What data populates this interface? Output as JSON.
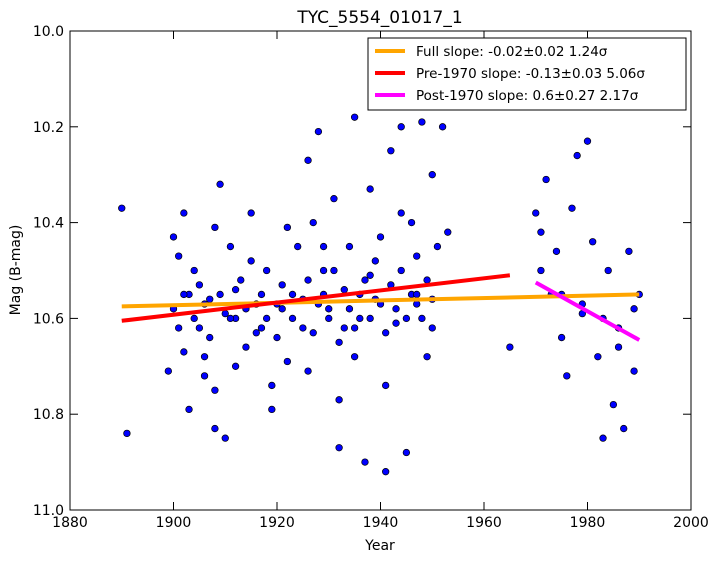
{
  "chart_data": {
    "type": "scatter",
    "title": "TYC_5554_01017_1",
    "x_label": "Year",
    "y_label": "Mag (B-mag)",
    "xlim": [
      1880,
      2000
    ],
    "ylim": [
      10.0,
      11.0
    ],
    "invert_y": true,
    "xticks": [
      1880,
      1900,
      1920,
      1940,
      1960,
      1980,
      2000
    ],
    "yticks": [
      {
        "value": 10.0,
        "label": "10.0"
      },
      10.2,
      10.4,
      10.6,
      10.8,
      {
        "value": 11.0,
        "label": "11.0"
      }
    ],
    "legend": "upper right",
    "points": {
      "color": "#0000ff",
      "x": [
        1890,
        1891,
        1899,
        1900,
        1901,
        1902,
        1903,
        1903,
        1905,
        1906,
        1907,
        1908,
        1908,
        1909,
        1910,
        1911,
        1912,
        1913,
        1914,
        1915,
        1916,
        1917,
        1918,
        1919,
        1920,
        1921,
        1922,
        1923,
        1924,
        1925,
        1926,
        1927,
        1928,
        1929,
        1930,
        1931,
        1932,
        1933,
        1934,
        1935,
        1936,
        1937,
        1938,
        1939,
        1940,
        1941,
        1942,
        1943,
        1944,
        1945,
        1946,
        1947,
        1948,
        1949,
        1950,
        1951,
        1952,
        1953,
        1965,
        1970,
        1971,
        1972,
        1973,
        1974,
        1975,
        1976,
        1977,
        1978,
        1979,
        1980,
        1981,
        1982,
        1983,
        1984,
        1985,
        1986,
        1987,
        1988,
        1989,
        1990,
        1900,
        1901,
        1902,
        1904,
        1905,
        1906,
        1907,
        1909,
        1910,
        1911,
        1912,
        1914,
        1916,
        1917,
        1918,
        1920,
        1921,
        1923,
        1925,
        1926,
        1927,
        1928,
        1929,
        1930,
        1931,
        1932,
        1933,
        1934,
        1935,
        1936,
        1937,
        1938,
        1939,
        1940,
        1941,
        1942,
        1943,
        1944,
        1945,
        1946,
        1947,
        1948,
        1949,
        1950,
        1902,
        1904,
        1906,
        1908,
        1912,
        1915,
        1919,
        1922,
        1926,
        1929,
        1932,
        1935,
        1938,
        1941,
        1944,
        1947,
        1950,
        1971,
        1975,
        1979,
        1983,
        1986,
        1989
      ],
      "y": [
        10.37,
        10.84,
        10.71,
        10.43,
        10.47,
        10.38,
        10.55,
        10.79,
        10.62,
        10.68,
        10.56,
        10.83,
        10.41,
        10.32,
        10.85,
        10.45,
        10.6,
        10.52,
        10.66,
        10.38,
        10.57,
        10.62,
        10.5,
        10.79,
        10.64,
        10.58,
        10.69,
        10.55,
        10.45,
        10.62,
        10.27,
        10.4,
        10.21,
        10.5,
        10.58,
        10.35,
        10.87,
        10.62,
        10.45,
        10.18,
        10.6,
        10.9,
        10.33,
        10.56,
        10.43,
        10.92,
        10.25,
        10.61,
        10.2,
        10.88,
        10.4,
        10.57,
        10.19,
        10.68,
        10.3,
        10.45,
        10.2,
        10.42,
        10.66,
        10.38,
        10.42,
        10.31,
        10.55,
        10.46,
        10.64,
        10.72,
        10.37,
        10.26,
        10.59,
        10.23,
        10.44,
        10.68,
        10.85,
        10.5,
        10.78,
        10.62,
        10.83,
        10.46,
        10.71,
        10.55,
        10.58,
        10.62,
        10.55,
        10.6,
        10.53,
        10.57,
        10.64,
        10.55,
        10.59,
        10.6,
        10.54,
        10.58,
        10.63,
        10.55,
        10.6,
        10.57,
        10.53,
        10.6,
        10.56,
        10.52,
        10.63,
        10.57,
        10.55,
        10.6,
        10.5,
        10.65,
        10.54,
        10.58,
        10.62,
        10.55,
        10.52,
        10.6,
        10.48,
        10.57,
        10.63,
        10.53,
        10.58,
        10.5,
        10.6,
        10.55,
        10.47,
        10.6,
        10.52,
        10.56,
        10.67,
        10.5,
        10.72,
        10.75,
        10.7,
        10.48,
        10.74,
        10.41,
        10.71,
        10.45,
        10.77,
        10.68,
        10.51,
        10.74,
        10.38,
        10.55,
        10.62,
        10.5,
        10.55,
        10.57,
        10.6,
        10.66,
        10.58
      ]
    },
    "lines": [
      {
        "name": "Full slope: -0.02±0.02 1.24σ",
        "color": "#ffa500",
        "x": [
          1890,
          1990
        ],
        "y": [
          10.575,
          10.55
        ]
      },
      {
        "name": "Pre-1970 slope: -0.13±0.03 5.06σ",
        "color": "#ff0000",
        "x": [
          1890,
          1965
        ],
        "y": [
          10.605,
          10.51
        ]
      },
      {
        "name": "Post-1970 slope: 0.6±0.27 2.17σ",
        "color": "#ff00ff",
        "x": [
          1970,
          1990
        ],
        "y": [
          10.525,
          10.645
        ]
      }
    ]
  }
}
